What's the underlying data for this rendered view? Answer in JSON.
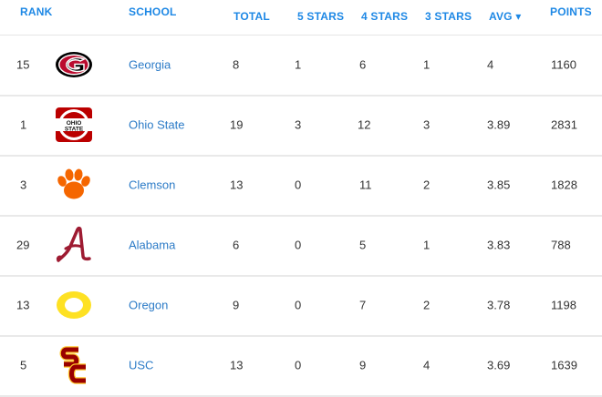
{
  "headers": {
    "rank": "RANK",
    "school": "SCHOOL",
    "total": "TOTAL",
    "five": "5 STARS",
    "four": "4 STARS",
    "three": "3 STARS",
    "avg": "AVG ▾",
    "points": "POINTS"
  },
  "rows": [
    {
      "rank": "15",
      "school": "Georgia",
      "total": "8",
      "five": "1",
      "four": "6",
      "three": "1",
      "avg": "4",
      "points": "1160",
      "logo": "georgia-g-logo"
    },
    {
      "rank": "1",
      "school": "Ohio State",
      "total": "19",
      "five": "3",
      "four": "12",
      "three": "3",
      "avg": "3.89",
      "points": "2831",
      "logo": "ohio-state-logo"
    },
    {
      "rank": "3",
      "school": "Clemson",
      "total": "13",
      "five": "0",
      "four": "11",
      "three": "2",
      "avg": "3.85",
      "points": "1828",
      "logo": "clemson-paw-logo"
    },
    {
      "rank": "29",
      "school": "Alabama",
      "total": "6",
      "five": "0",
      "four": "5",
      "three": "1",
      "avg": "3.83",
      "points": "788",
      "logo": "alabama-a-logo"
    },
    {
      "rank": "13",
      "school": "Oregon",
      "total": "9",
      "five": "0",
      "four": "7",
      "three": "2",
      "avg": "3.78",
      "points": "1198",
      "logo": "oregon-o-logo"
    },
    {
      "rank": "5",
      "school": "USC",
      "total": "13",
      "five": "0",
      "four": "9",
      "three": "4",
      "avg": "3.69",
      "points": "1639",
      "logo": "usc-sc-logo"
    }
  ],
  "logo_text": {
    "ohio_top": "OHIO",
    "ohio_bottom": "STATE"
  },
  "colors": {
    "header_blue": "#1e88e5",
    "link_blue": "#2c7bc7",
    "georgia_red": "#ba0c2f",
    "ohio_scarlet": "#bb0000",
    "clemson_orange": "#f56600",
    "alabama_crimson": "#9e1b32",
    "oregon_yellow": "#fee123",
    "usc_cardinal": "#990000",
    "usc_gold": "#ffc72c"
  }
}
